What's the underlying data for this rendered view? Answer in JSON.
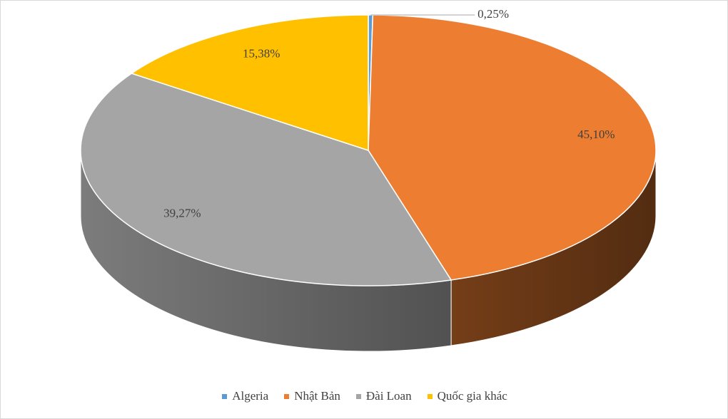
{
  "chart_data": {
    "type": "pie3d",
    "categories": [
      "Algeria",
      "Nhật Bản",
      "Đài Loan",
      "Quốc gia khác"
    ],
    "values": [
      0.25,
      45.1,
      39.27,
      15.38
    ],
    "value_labels": [
      "0,25%",
      "45,10%",
      "39,27%",
      "15,38%"
    ],
    "colors": [
      "#5b9bd5",
      "#ed7d31",
      "#a5a5a5",
      "#ffc000"
    ],
    "legend": "bottom"
  }
}
